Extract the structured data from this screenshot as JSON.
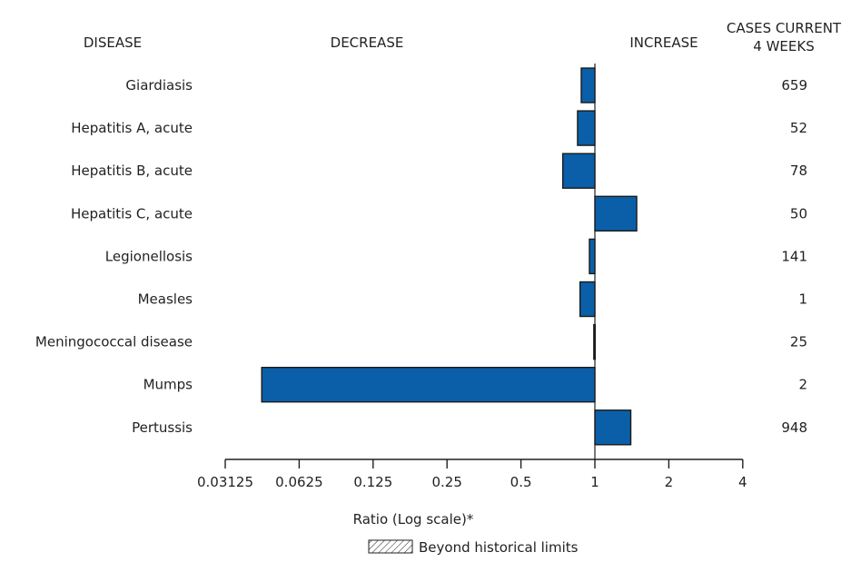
{
  "headers": {
    "disease": "DISEASE",
    "decrease": "DECREASE",
    "increase": "INCREASE",
    "cases_line1": "CASES CURRENT",
    "cases_line2": "4 WEEKS"
  },
  "legend": {
    "label": "Beyond historical limits"
  },
  "colors": {
    "bar_fill": "#0a5fa8",
    "bar_stroke": "#1a1a1a",
    "axis": "#231f20",
    "text": "#231f20"
  },
  "chart_data": {
    "type": "bar",
    "orientation": "horizontal",
    "xscale": "log2",
    "xlabel": "Ratio (Log scale)*",
    "xlim": [
      0.03125,
      4
    ],
    "xticks": [
      0.03125,
      0.0625,
      0.125,
      0.25,
      0.5,
      1,
      2,
      4
    ],
    "xtick_labels": [
      "0.03125",
      "0.0625",
      "0.125",
      "0.25",
      "0.5",
      "1",
      "2",
      "4"
    ],
    "baseline": 1,
    "categories": [
      "Giardiasis",
      "Hepatitis A, acute",
      "Hepatitis B, acute",
      "Hepatitis C, acute",
      "Legionellosis",
      "Measles",
      "Meningococcal disease",
      "Mumps",
      "Pertussis"
    ],
    "values": [
      0.88,
      0.85,
      0.74,
      1.48,
      0.95,
      0.87,
      0.99,
      0.044,
      1.4
    ],
    "cases_current_4_weeks": [
      659,
      52,
      78,
      50,
      141,
      1,
      25,
      2,
      948
    ],
    "beyond_historical_limits": [
      false,
      false,
      false,
      false,
      false,
      false,
      false,
      false,
      false
    ],
    "grid": false
  }
}
